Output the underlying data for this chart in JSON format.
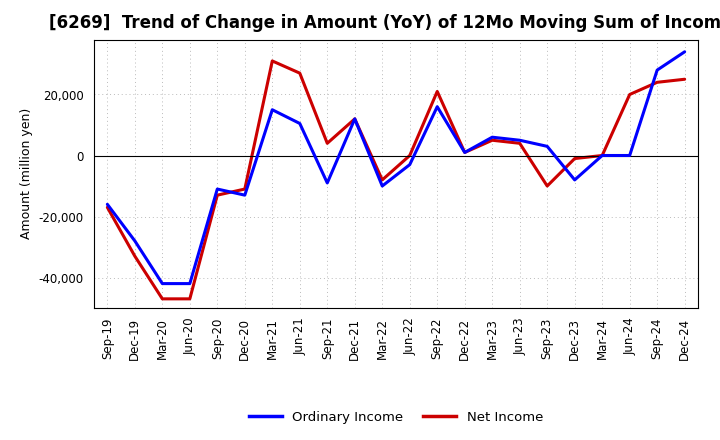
{
  "title": "[6269]  Trend of Change in Amount (YoY) of 12Mo Moving Sum of Incomes",
  "ylabel": "Amount (million yen)",
  "x_labels": [
    "Sep-19",
    "Dec-19",
    "Mar-20",
    "Jun-20",
    "Sep-20",
    "Dec-20",
    "Mar-21",
    "Jun-21",
    "Sep-21",
    "Dec-21",
    "Mar-22",
    "Jun-22",
    "Sep-22",
    "Dec-22",
    "Mar-23",
    "Jun-23",
    "Sep-23",
    "Dec-23",
    "Mar-24",
    "Jun-24",
    "Sep-24",
    "Dec-24"
  ],
  "ordinary_income": [
    -16000,
    -28000,
    -42000,
    -42000,
    -11000,
    -13000,
    15000,
    10500,
    -9000,
    12000,
    -10000,
    -3000,
    16000,
    1000,
    6000,
    5000,
    3000,
    -8000,
    0,
    0,
    28000,
    34000
  ],
  "net_income": [
    -17000,
    -33000,
    -47000,
    -47000,
    -13000,
    -11000,
    31000,
    27000,
    4000,
    12000,
    -8000,
    0,
    21000,
    1000,
    5000,
    4000,
    -10000,
    -1000,
    0,
    20000,
    24000,
    25000
  ],
  "ordinary_income_color": "#0000ff",
  "net_income_color": "#cc0000",
  "background_color": "#ffffff",
  "grid_color": "#bbbbbb",
  "ylim": [
    -50000,
    38000
  ],
  "yticks": [
    -40000,
    -20000,
    0,
    20000
  ],
  "legend_labels": [
    "Ordinary Income",
    "Net Income"
  ],
  "line_width": 2.2,
  "title_fontsize": 12,
  "tick_fontsize": 8.5,
  "ylabel_fontsize": 9
}
